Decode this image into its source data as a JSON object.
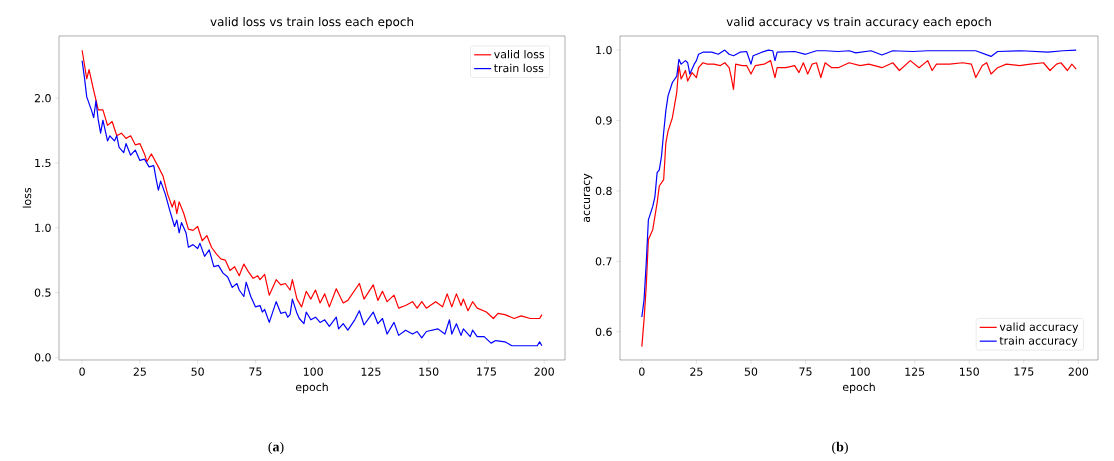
{
  "chart_data": [
    {
      "type": "line",
      "title": "valid loss vs train loss each epoch",
      "xlabel": "epoch",
      "ylabel": "loss",
      "xlim": [
        -10,
        209
      ],
      "ylim": [
        -0.02,
        2.48
      ],
      "xticks": [
        0,
        25,
        50,
        75,
        100,
        125,
        150,
        175,
        200
      ],
      "yticks": [
        {
          "value": 0,
          "label": "0.0"
        },
        0.5,
        {
          "value": 1,
          "label": "1.0"
        },
        1.5,
        {
          "value": 2,
          "label": "2.0"
        }
      ],
      "legend": "top right",
      "annotations": [
        "(**a**)"
      ],
      "series": [
        {
          "name": "valid loss",
          "color": "#ff0000",
          "x": [
            0,
            2,
            3,
            5,
            7,
            9,
            11,
            13,
            15,
            17,
            19,
            21,
            23,
            25,
            27,
            28,
            30,
            33,
            35,
            37,
            39,
            40,
            41,
            42,
            44,
            46,
            48,
            50,
            52,
            54,
            56,
            58,
            60,
            62,
            64,
            66,
            68,
            70,
            72,
            74,
            76,
            77,
            79,
            81,
            84,
            86,
            88,
            90,
            91,
            93,
            95,
            97,
            99,
            101,
            103,
            105,
            107,
            110,
            113,
            115,
            120,
            122,
            126,
            128,
            130,
            132,
            135,
            137,
            140,
            143,
            145,
            147,
            149,
            153,
            156,
            158,
            160,
            162,
            164,
            165,
            167,
            169,
            171,
            175,
            178,
            180,
            183,
            187,
            190,
            194,
            198,
            199
          ],
          "values": [
            2.37,
            2.15,
            2.22,
            2.06,
            1.91,
            1.91,
            1.79,
            1.82,
            1.71,
            1.73,
            1.69,
            1.71,
            1.64,
            1.65,
            1.57,
            1.51,
            1.57,
            1.47,
            1.4,
            1.26,
            1.16,
            1.21,
            1.11,
            1.2,
            1.11,
            0.99,
            0.98,
            1.01,
            0.9,
            0.94,
            0.85,
            0.8,
            0.76,
            0.75,
            0.67,
            0.7,
            0.63,
            0.72,
            0.66,
            0.61,
            0.63,
            0.6,
            0.64,
            0.48,
            0.6,
            0.56,
            0.57,
            0.52,
            0.6,
            0.45,
            0.39,
            0.51,
            0.45,
            0.52,
            0.42,
            0.49,
            0.39,
            0.53,
            0.42,
            0.44,
            0.57,
            0.45,
            0.56,
            0.44,
            0.51,
            0.43,
            0.48,
            0.38,
            0.4,
            0.43,
            0.38,
            0.43,
            0.38,
            0.43,
            0.39,
            0.49,
            0.39,
            0.49,
            0.4,
            0.45,
            0.36,
            0.43,
            0.38,
            0.35,
            0.3,
            0.34,
            0.33,
            0.3,
            0.32,
            0.3,
            0.3,
            0.33
          ]
        },
        {
          "name": "train loss",
          "color": "#0000ff",
          "x": [
            0,
            1,
            2,
            4,
            5,
            6,
            7,
            8,
            9,
            11,
            12,
            14,
            15,
            16,
            18,
            19,
            21,
            23,
            25,
            27,
            29,
            31,
            32,
            33,
            34,
            36,
            38,
            40,
            41,
            42,
            43,
            45,
            46,
            48,
            50,
            51,
            53,
            55,
            57,
            59,
            61,
            63,
            65,
            67,
            68,
            70,
            71,
            73,
            75,
            77,
            78,
            79,
            81,
            84,
            86,
            88,
            89,
            90,
            91,
            93,
            94,
            96,
            97,
            99,
            101,
            103,
            105,
            107,
            110,
            111,
            113,
            115,
            118,
            120,
            122,
            126,
            128,
            130,
            132,
            135,
            137,
            140,
            143,
            145,
            147,
            149,
            154,
            157,
            159,
            160,
            162,
            164,
            165,
            168,
            169,
            171,
            174,
            177,
            179,
            183,
            186,
            191,
            197,
            198,
            199
          ],
          "values": [
            2.29,
            2.16,
            2.01,
            1.91,
            1.85,
            1.98,
            1.83,
            1.73,
            1.83,
            1.67,
            1.71,
            1.67,
            1.71,
            1.62,
            1.58,
            1.65,
            1.56,
            1.6,
            1.52,
            1.53,
            1.47,
            1.48,
            1.38,
            1.29,
            1.36,
            1.26,
            1.13,
            1.01,
            1.06,
            0.96,
            1.04,
            0.96,
            0.85,
            0.87,
            0.84,
            0.88,
            0.78,
            0.83,
            0.7,
            0.71,
            0.65,
            0.62,
            0.54,
            0.57,
            0.52,
            0.47,
            0.58,
            0.47,
            0.39,
            0.4,
            0.35,
            0.37,
            0.27,
            0.43,
            0.34,
            0.35,
            0.31,
            0.33,
            0.45,
            0.34,
            0.3,
            0.26,
            0.35,
            0.29,
            0.31,
            0.27,
            0.29,
            0.24,
            0.31,
            0.22,
            0.26,
            0.21,
            0.29,
            0.36,
            0.25,
            0.35,
            0.26,
            0.3,
            0.18,
            0.27,
            0.17,
            0.21,
            0.18,
            0.2,
            0.15,
            0.2,
            0.22,
            0.18,
            0.29,
            0.18,
            0.26,
            0.17,
            0.22,
            0.16,
            0.21,
            0.16,
            0.16,
            0.11,
            0.13,
            0.12,
            0.09,
            0.09,
            0.09,
            0.12,
            0.09
          ]
        }
      ]
    },
    {
      "type": "line",
      "title": "valid accuracy vs train accuracy each epoch",
      "xlabel": "epoch",
      "ylabel": "accuracy",
      "xlim": [
        -10,
        209
      ],
      "ylim": [
        0.56,
        1.02
      ],
      "xticks": [
        0,
        25,
        50,
        75,
        100,
        125,
        150,
        175,
        200
      ],
      "yticks": [
        0.6,
        0.7,
        0.8,
        0.9,
        {
          "value": 1,
          "label": "1.0"
        }
      ],
      "legend": "bottom right",
      "annotations": [
        "(**b**)"
      ],
      "series": [
        {
          "name": "valid accuracy",
          "color": "#ff0000",
          "x": [
            0,
            1,
            2,
            3,
            5,
            7,
            8,
            10,
            11,
            12,
            14,
            16,
            17,
            18,
            20,
            21,
            23,
            25,
            26,
            28,
            30,
            33,
            36,
            38,
            40,
            41,
            42,
            43,
            46,
            48,
            50,
            52,
            56,
            59,
            61,
            62,
            66,
            70,
            72,
            74,
            76,
            78,
            80,
            82,
            84,
            87,
            90,
            95,
            100,
            104,
            110,
            115,
            118,
            123,
            127,
            131,
            133,
            135,
            141,
            147,
            151,
            153,
            156,
            158,
            160,
            163,
            167,
            173,
            178,
            184,
            187,
            190,
            192,
            195,
            197,
            199
          ],
          "values": [
            0.579,
            0.617,
            0.664,
            0.731,
            0.745,
            0.783,
            0.807,
            0.816,
            0.868,
            0.885,
            0.904,
            0.94,
            0.978,
            0.959,
            0.971,
            0.956,
            0.968,
            0.961,
            0.975,
            0.982,
            0.98,
            0.98,
            0.978,
            0.982,
            0.975,
            0.961,
            0.944,
            0.98,
            0.978,
            0.978,
            0.966,
            0.978,
            0.98,
            0.985,
            0.961,
            0.975,
            0.975,
            0.978,
            0.968,
            0.982,
            0.966,
            0.98,
            0.982,
            0.961,
            0.982,
            0.975,
            0.975,
            0.982,
            0.978,
            0.98,
            0.975,
            0.982,
            0.971,
            0.985,
            0.975,
            0.985,
            0.971,
            0.98,
            0.98,
            0.982,
            0.98,
            0.961,
            0.978,
            0.982,
            0.966,
            0.975,
            0.98,
            0.978,
            0.98,
            0.982,
            0.971,
            0.98,
            0.982,
            0.971,
            0.98,
            0.973
          ]
        },
        {
          "name": "train accuracy",
          "color": "#0000ff",
          "x": [
            0,
            1,
            2,
            3,
            5,
            6,
            7,
            8,
            9,
            10,
            11,
            12,
            14,
            16,
            17,
            18,
            20,
            21,
            22,
            24,
            25,
            26,
            28,
            32,
            35,
            38,
            40,
            42,
            45,
            48,
            50,
            51,
            55,
            58,
            60,
            61,
            62,
            70,
            75,
            80,
            84,
            90,
            95,
            98,
            105,
            110,
            115,
            124,
            131,
            138,
            153,
            160,
            163,
            174,
            186,
            193,
            199
          ],
          "values": [
            0.621,
            0.645,
            0.697,
            0.759,
            0.778,
            0.792,
            0.826,
            0.83,
            0.849,
            0.883,
            0.914,
            0.935,
            0.954,
            0.963,
            0.987,
            0.98,
            0.985,
            0.982,
            0.966,
            0.98,
            0.985,
            0.994,
            0.997,
            0.997,
            0.994,
            1.0,
            0.994,
            0.992,
            0.997,
            0.998,
            0.98,
            0.992,
            0.997,
            1.0,
            0.999,
            0.985,
            0.997,
            0.998,
            0.994,
            0.999,
            0.999,
            0.998,
            0.999,
            0.996,
            0.999,
            0.993,
            0.999,
            0.998,
            0.999,
            0.999,
            0.999,
            0.991,
            0.998,
            0.999,
            0.997,
            0.999,
            1.0
          ]
        }
      ]
    }
  ]
}
